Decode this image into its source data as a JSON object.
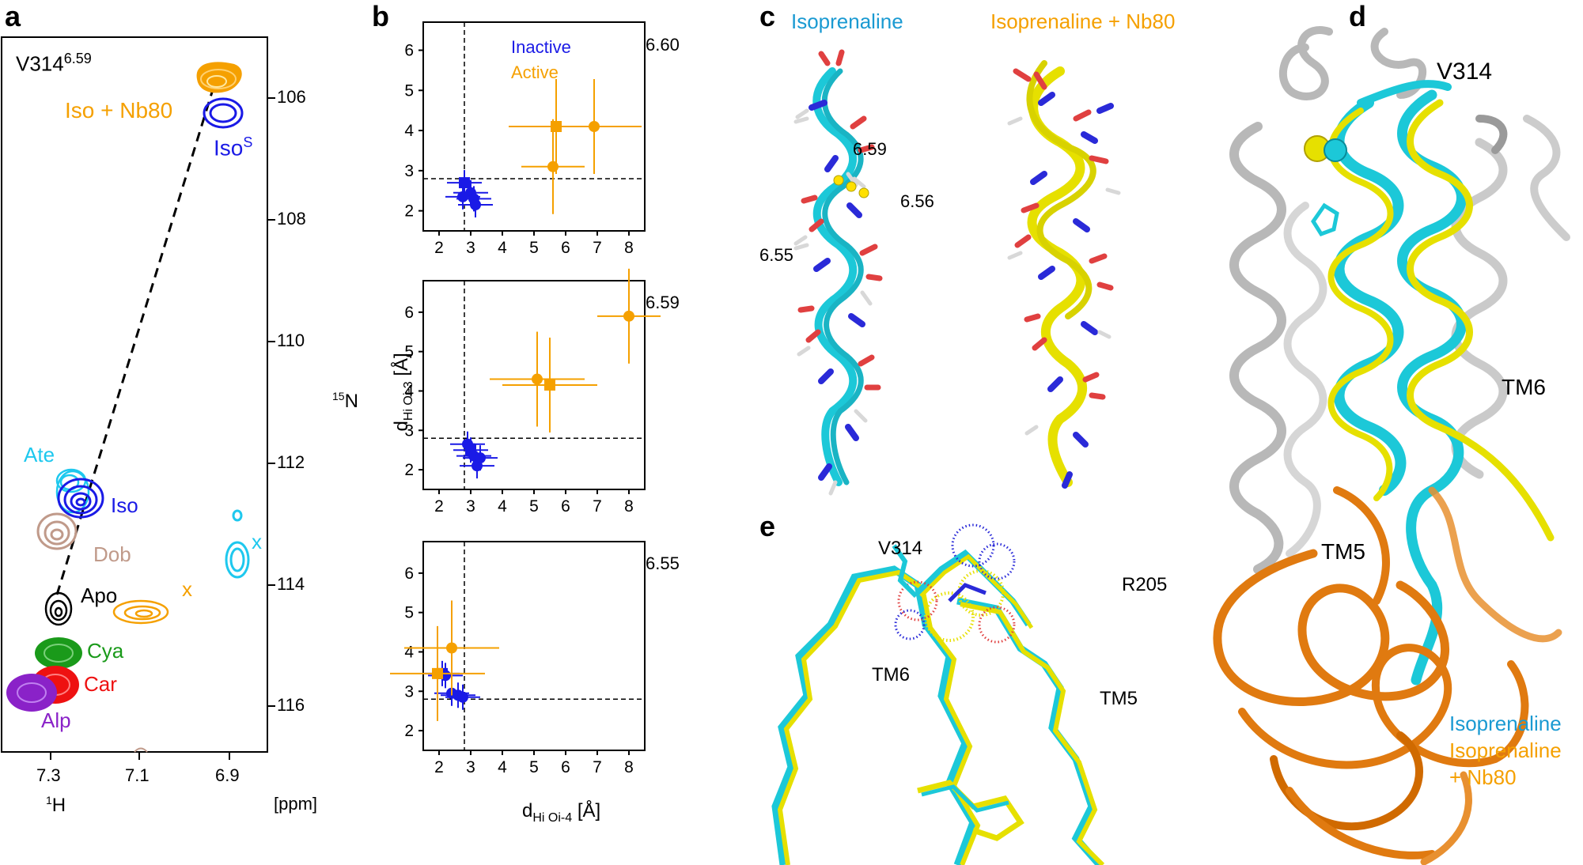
{
  "panels": {
    "a": "a",
    "b": "b",
    "c": "c",
    "d": "d",
    "e": "e"
  },
  "colors": {
    "inactive": "#1a1ae6",
    "active": "#f5a000",
    "cyan": "#1cc8d8",
    "yellow": "#e6e000",
    "orange": "#e07a10",
    "grey": "#b8b8b8",
    "ate": "#1ec8ee",
    "dob": "#c09a8a",
    "cya": "#1a9a1a",
    "car": "#ee1111",
    "alp": "#8a22c8",
    "iso_label": "#1a9ad2"
  },
  "nmr": {
    "residue": "V314",
    "residue_sup": "6.59",
    "x_ticks": [
      "7.3",
      "7.1",
      "6.9"
    ],
    "y_ticks": [
      "106",
      "108",
      "110",
      "112",
      "114",
      "116"
    ],
    "x_label": "1H",
    "x_label_sup": "1",
    "x_label_main": "H",
    "y_label_sup": "15",
    "y_label_main": "N",
    "unit": "[ppm]",
    "peaks": {
      "iso_nb80": "Iso + Nb80",
      "iso_s": "Iso",
      "iso_s_sup": "S",
      "ate": "Ate",
      "iso": "Iso",
      "dob": "Dob",
      "apo": "Apo",
      "cya": "Cya",
      "car": "Car",
      "alp": "Alp",
      "x1": "x",
      "x2": "x"
    }
  },
  "chart_data": [
    {
      "type": "scatter",
      "title": "6.60",
      "legend": [
        "Inactive",
        "Active"
      ],
      "xlim": [
        1.5,
        8.5
      ],
      "ylim": [
        1.5,
        6.7
      ],
      "x_ticks": [
        "2",
        "3",
        "4",
        "5",
        "6",
        "7",
        "8"
      ],
      "y_ticks": [
        "2",
        "3",
        "4",
        "5",
        "6"
      ],
      "threshold": 2.8,
      "series": [
        {
          "name": "Inactive",
          "points": [
            {
              "x": 2.8,
              "y": 2.7,
              "shape": "square"
            },
            {
              "x": 3.0,
              "y": 2.45,
              "shape": "circle"
            },
            {
              "x": 3.1,
              "y": 2.3,
              "shape": "circle"
            },
            {
              "x": 2.75,
              "y": 2.35,
              "shape": "circle"
            },
            {
              "x": 3.15,
              "y": 2.15,
              "shape": "circle"
            }
          ]
        },
        {
          "name": "Active",
          "points": [
            {
              "x": 5.7,
              "y": 4.1,
              "shape": "square"
            },
            {
              "x": 6.9,
              "y": 4.1,
              "shape": "circle"
            },
            {
              "x": 5.6,
              "y": 3.1,
              "shape": "circle"
            }
          ]
        }
      ]
    },
    {
      "type": "scatter",
      "title": "6.59",
      "xlim": [
        1.5,
        8.5
      ],
      "ylim": [
        1.5,
        6.8
      ],
      "x_ticks": [
        "2",
        "3",
        "4",
        "5",
        "6",
        "7",
        "8"
      ],
      "y_ticks": [
        "2",
        "3",
        "4",
        "5",
        "6"
      ],
      "ylabel": "d",
      "ylabel_sub": "Hi Oi-3",
      "ylabel_unit": "[Å]",
      "threshold": 2.8,
      "series": [
        {
          "name": "Inactive",
          "points": [
            {
              "x": 3.0,
              "y": 2.5,
              "shape": "square"
            },
            {
              "x": 2.9,
              "y": 2.65,
              "shape": "circle"
            },
            {
              "x": 3.1,
              "y": 2.35,
              "shape": "circle"
            },
            {
              "x": 3.2,
              "y": 2.1,
              "shape": "circle"
            },
            {
              "x": 3.3,
              "y": 2.3,
              "shape": "circle"
            }
          ]
        },
        {
          "name": "Active",
          "points": [
            {
              "x": 5.5,
              "y": 4.15,
              "shape": "square"
            },
            {
              "x": 5.1,
              "y": 4.3,
              "shape": "circle"
            },
            {
              "x": 8.0,
              "y": 5.9,
              "shape": "circle"
            }
          ]
        }
      ]
    },
    {
      "type": "scatter",
      "title": "6.55",
      "xlim": [
        1.5,
        8.5
      ],
      "ylim": [
        1.5,
        6.8
      ],
      "x_ticks": [
        "2",
        "3",
        "4",
        "5",
        "6",
        "7",
        "8"
      ],
      "y_ticks": [
        "2",
        "3",
        "4",
        "5",
        "6"
      ],
      "xlabel": "d",
      "xlabel_sub": "Hi Oi-4",
      "xlabel_unit": "[Å]",
      "threshold": 2.8,
      "series": [
        {
          "name": "Inactive",
          "points": [
            {
              "x": 2.1,
              "y": 3.45,
              "shape": "square"
            },
            {
              "x": 2.2,
              "y": 3.4,
              "shape": "circle"
            },
            {
              "x": 2.4,
              "y": 2.95,
              "shape": "circle"
            },
            {
              "x": 2.6,
              "y": 2.9,
              "shape": "circle"
            },
            {
              "x": 2.75,
              "y": 2.85,
              "shape": "circle"
            }
          ]
        },
        {
          "name": "Active",
          "points": [
            {
              "x": 1.95,
              "y": 3.45,
              "shape": "square"
            },
            {
              "x": 2.4,
              "y": 4.1,
              "shape": "circle"
            }
          ]
        }
      ]
    }
  ],
  "panel_c": {
    "title_left": "Isoprenaline",
    "title_right": "Isoprenaline + Nb80",
    "labels": [
      "6.59",
      "6.56",
      "6.55"
    ]
  },
  "panel_d": {
    "v314": "V314",
    "tm6": "TM6",
    "tm5": "TM5",
    "legend_iso": "Isoprenaline",
    "legend_nb80_1": "Isoprenaline",
    "legend_nb80_2": "+ Nb80"
  },
  "panel_e": {
    "v314": "V314",
    "r205": "R205",
    "tm6": "TM6",
    "tm5": "TM5"
  }
}
